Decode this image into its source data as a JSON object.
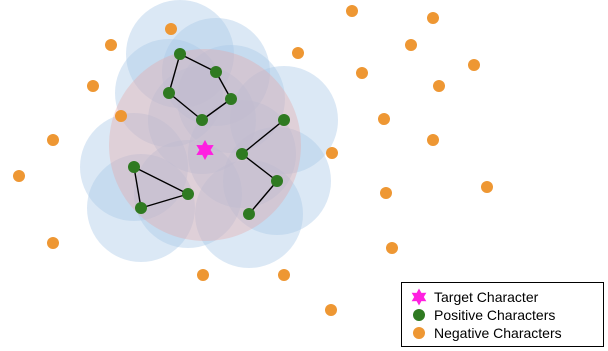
{
  "legend": {
    "target_label": "Target Character",
    "positive_label": "Positive Characters",
    "negative_label": "Negative Characters"
  },
  "colors": {
    "target": "#ff1fe0",
    "positive": "#2f7a21",
    "negative": "#ee9733",
    "neighborhood_fill": "#a9c8e8",
    "region_fill": "#e8a3a3"
  },
  "icons": {
    "target": "star-icon",
    "positive": "green-dot-icon",
    "negative": "orange-dot-icon"
  }
}
